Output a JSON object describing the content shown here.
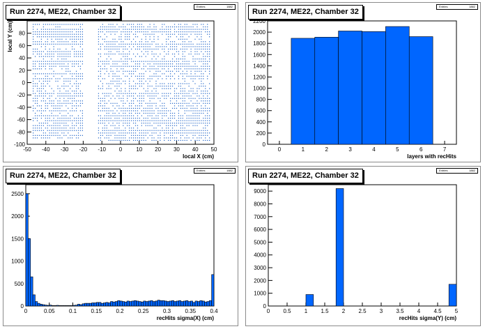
{
  "chart_data": [
    {
      "type": "scatter",
      "title": "Run 2274, ME22, Chamber 32",
      "stats_label": "Entries",
      "stats_value": "1882",
      "xlabel": "local X (cm)",
      "ylabel": "local Y (cm)",
      "xlim": [
        -50,
        50
      ],
      "ylim": [
        -100,
        100
      ],
      "xticks": [
        -50,
        -40,
        -30,
        -20,
        -10,
        0,
        10,
        20,
        30,
        40,
        50
      ],
      "yticks": [
        -100,
        -80,
        -60,
        -40,
        -20,
        0,
        20,
        40,
        60,
        80
      ],
      "color": "#1f64c8",
      "bands": [
        {
          "x": [
            -47,
            -20
          ],
          "y": [
            -90,
            95
          ]
        },
        {
          "x": [
            -12,
            48
          ],
          "y": [
            -95,
            95
          ]
        }
      ],
      "grid": false
    },
    {
      "type": "bar",
      "title": "Run 2274, ME22, Chamber 32",
      "stats_label": "Entries",
      "stats_value": "1882",
      "xlabel": "layers with recHits",
      "ylabel": "",
      "xlim": [
        -0.5,
        7.5
      ],
      "ylim": [
        0,
        2200
      ],
      "xticks": [
        0,
        1,
        2,
        3,
        4,
        5,
        6,
        7
      ],
      "yticks": [
        0,
        200,
        400,
        600,
        800,
        1000,
        1200,
        1400,
        1600,
        1800,
        2000,
        2200
      ],
      "x": [
        1,
        2,
        3,
        4,
        5,
        6
      ],
      "values": [
        1890,
        1910,
        2020,
        2010,
        2100,
        1920
      ],
      "bin_width": 1,
      "color": "#0066ff",
      "grid": false
    },
    {
      "type": "bar",
      "title": "Run 2274, ME22, Chamber 32",
      "stats_label": "Entries",
      "stats_value": "1882",
      "xlabel": "recHits sigma(X) (cm)",
      "ylabel": "",
      "xlim": [
        0,
        0.4
      ],
      "ylim": [
        0,
        2700
      ],
      "xticks": [
        0,
        0.05,
        0.1,
        0.15,
        0.2,
        0.25,
        0.3,
        0.35,
        0.4
      ],
      "xticklabels": [
        "0",
        "0.05",
        "0.1",
        "0.15",
        "0.2",
        "0.25",
        "0.3",
        "0.35",
        "0.4"
      ],
      "yticks": [
        0,
        500,
        1000,
        1500,
        2000,
        2500
      ],
      "bin_width": 0.005,
      "x": [
        0.0025,
        0.0075,
        0.0125,
        0.0175,
        0.0225,
        0.0275,
        0.0325,
        0.0375,
        0.0425,
        0.0475,
        0.0525,
        0.0575,
        0.0625,
        0.0675,
        0.0725,
        0.0775,
        0.0825,
        0.0875,
        0.0925,
        0.0975,
        0.1025,
        0.1075,
        0.1125,
        0.1175,
        0.1225,
        0.1275,
        0.1325,
        0.1375,
        0.1425,
        0.1475,
        0.1525,
        0.1575,
        0.1625,
        0.1675,
        0.1725,
        0.1775,
        0.1825,
        0.1875,
        0.1925,
        0.1975,
        0.2025,
        0.2075,
        0.2125,
        0.2175,
        0.2225,
        0.2275,
        0.2325,
        0.2375,
        0.2425,
        0.2475,
        0.2525,
        0.2575,
        0.2625,
        0.2675,
        0.2725,
        0.2775,
        0.2825,
        0.2875,
        0.2925,
        0.2975,
        0.3025,
        0.3075,
        0.3125,
        0.3175,
        0.3225,
        0.3275,
        0.3325,
        0.3375,
        0.3425,
        0.3475,
        0.3525,
        0.3575,
        0.3625,
        0.3675,
        0.3725,
        0.3775,
        0.3825,
        0.3875,
        0.3925,
        0.3975
      ],
      "values": [
        2500,
        1500,
        650,
        250,
        100,
        60,
        40,
        30,
        20,
        15,
        20,
        10,
        10,
        15,
        10,
        10,
        10,
        10,
        10,
        10,
        15,
        20,
        40,
        30,
        50,
        60,
        60,
        60,
        70,
        70,
        80,
        80,
        60,
        70,
        80,
        70,
        100,
        90,
        100,
        120,
        110,
        100,
        90,
        110,
        100,
        110,
        120,
        110,
        100,
        90,
        110,
        100,
        110,
        120,
        100,
        110,
        130,
        120,
        120,
        110,
        100,
        110,
        120,
        100,
        110,
        120,
        100,
        110,
        120,
        100,
        110,
        80,
        110,
        100,
        120,
        110,
        90,
        100,
        120,
        700
      ],
      "color": "#0066ff",
      "grid": false
    },
    {
      "type": "bar",
      "title": "Run 2274, ME22, Chamber 32",
      "stats_label": "Entries",
      "stats_value": "1882",
      "xlabel": "recHits sigma(Y) (cm)",
      "ylabel": "",
      "xlim": [
        0,
        5
      ],
      "ylim": [
        0,
        9500
      ],
      "xticks": [
        0,
        0.5,
        1,
        1.5,
        2,
        2.5,
        3,
        3.5,
        4,
        4.5,
        5
      ],
      "xticklabels": [
        "0",
        "0.5",
        "1",
        "1.5",
        "2",
        "2.5",
        "3",
        "3.5",
        "4",
        "4.5",
        "5"
      ],
      "yticks": [
        0,
        1000,
        2000,
        3000,
        4000,
        5000,
        6000,
        7000,
        8000,
        9000
      ],
      "bin_width": 0.2,
      "x": [
        1.1,
        1.9,
        4.9
      ],
      "values": [
        900,
        9200,
        1700
      ],
      "color": "#0066ff",
      "grid": false
    }
  ]
}
